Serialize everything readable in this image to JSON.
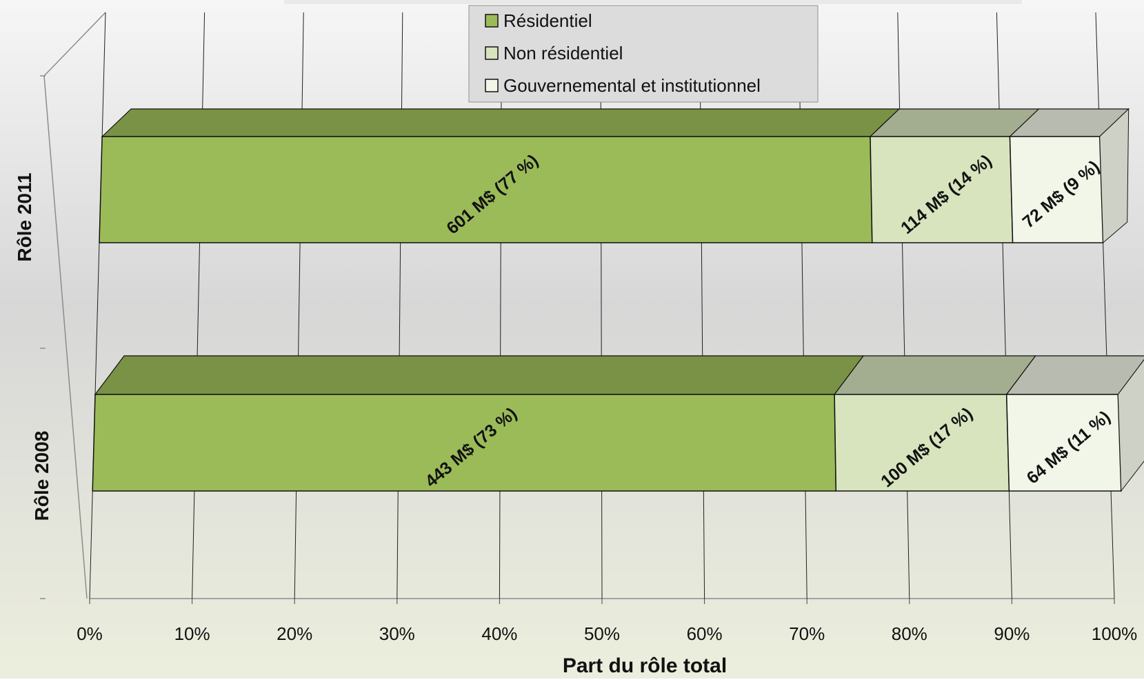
{
  "chart_data": {
    "type": "bar",
    "orientation": "horizontal",
    "stacked": "percent",
    "style": "3d",
    "xlabel": "Part du rôle total",
    "xlim": [
      0,
      100
    ],
    "x_ticks": [
      "0%",
      "10%",
      "20%",
      "30%",
      "40%",
      "50%",
      "60%",
      "70%",
      "80%",
      "90%",
      "100%"
    ],
    "grid": true,
    "legend_position": "top-center",
    "categories": [
      "Rôle 2011",
      "Rôle 2008"
    ],
    "series": [
      {
        "name": "Résidentiel",
        "color": "#9bbb59",
        "values": [
          77,
          73
        ],
        "labels": [
          "601 M$ (77 %)",
          "443 M$ (73 %)"
        ]
      },
      {
        "name": "Non résidentiel",
        "color": "#d7e4bd",
        "values": [
          14,
          17
        ],
        "labels": [
          "114 M$ (14 %)",
          "100 M$ (17 %)"
        ]
      },
      {
        "name": "Gouvernemental et institutionnel",
        "color": "#f2f6e8",
        "values": [
          9,
          11
        ],
        "labels": [
          "72 M$ (9 %)",
          "64 M$ (11 %)"
        ]
      }
    ]
  }
}
